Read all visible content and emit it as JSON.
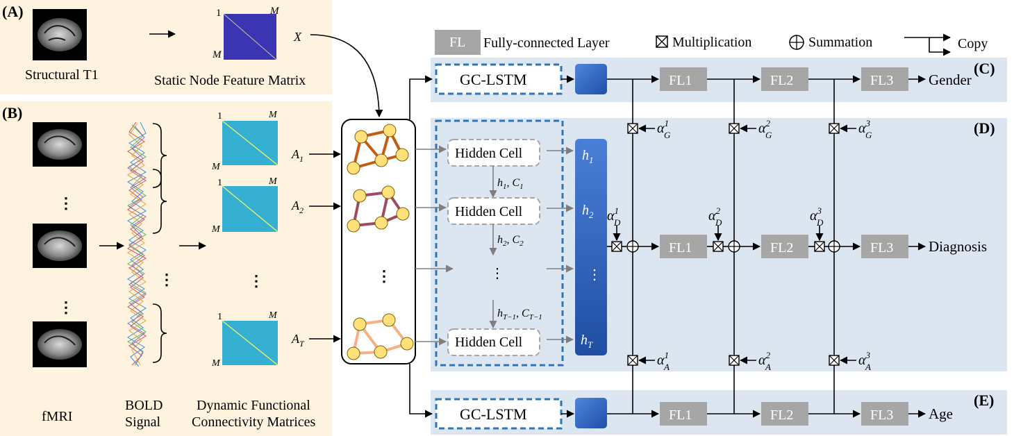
{
  "panels": {
    "a": "(A)",
    "b": "(B)",
    "c": "(C)",
    "d": "(D)",
    "e": "(E)"
  },
  "labels": {
    "structural_t1": "Structural T1",
    "static_matrix": "Static Node Feature Matrix",
    "x_symbol": "X",
    "fmri": "fMRI",
    "bold_line1": "BOLD",
    "bold_line2": "Signal",
    "dfc_line1": "Dynamic Functional",
    "dfc_line2": "Connectivity Matrices",
    "matrix_one": "1",
    "matrix_m": "M",
    "a1": "A",
    "a1_sub": "1",
    "a2": "A",
    "a2_sub": "2",
    "at": "A",
    "at_sub": "T"
  },
  "legend": {
    "fl_box": "FL",
    "fl_label": "Fully-connected Layer",
    "mult_label": "Multiplication",
    "sum_label": "Summation",
    "copy_label": "Copy"
  },
  "modules": {
    "gclstm": "GC-LSTM",
    "hidden_cell": "Hidden Cell",
    "fl1": "FL1",
    "fl2": "FL2",
    "fl3": "FL3"
  },
  "outputs": {
    "gender": "Gender",
    "diagnosis": "Diagnosis",
    "age": "Age"
  },
  "hidden": {
    "h1": "h",
    "h1_sub": "1",
    "h2": "h",
    "h2_sub": "2",
    "ht": "h",
    "ht_sub": "T",
    "t1_h": "h",
    "t1_h_sub": "1",
    "t1_c": ", C",
    "t1_c_sub": "1",
    "t2_h": "h",
    "t2_h_sub": "2",
    "t2_c": ", C",
    "t2_c_sub": "2",
    "t3_h": "h",
    "t3_h_sub": "T−1",
    "t3_c": ", C",
    "t3_c_sub": "T−1"
  },
  "alphas": {
    "g1": "1",
    "g2": "2",
    "g3": "3",
    "d1": "1",
    "d2": "2",
    "d3": "3",
    "a1": "1",
    "a2": "2",
    "a3": "3",
    "sub_g": "G",
    "sub_d": "D",
    "sub_a": "A",
    "base": "α"
  },
  "colors": {
    "panel_ab": "#fdf3df",
    "panel_cde": "#dce6f1",
    "dashed_box": "#2e75b6",
    "h_column": "#2f5fb8",
    "fl_box": "#a6a6a6",
    "graph1": "#c55a11",
    "graph2": "#a04a62",
    "graph3": "#f4b183",
    "node": "#ffe07a"
  }
}
